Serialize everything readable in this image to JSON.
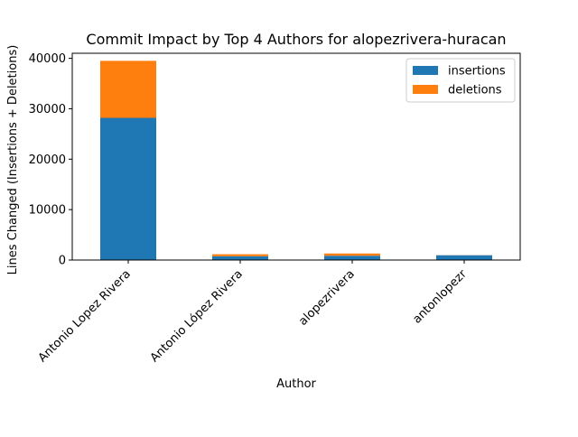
{
  "chart_data": {
    "type": "bar",
    "stacked": true,
    "title": "Commit Impact by Top 4 Authors for alopezrivera-huracan",
    "xlabel": "Author",
    "ylabel": "Lines Changed (Insertions + Deletions)",
    "categories": [
      "Antonio Lopez Rivera",
      "Antonio López Rivera",
      "alopezrivera",
      "antonlopezr"
    ],
    "series": [
      {
        "name": "insertions",
        "color": "#1f77b4",
        "values": [
          28200,
          750,
          850,
          950
        ]
      },
      {
        "name": "deletions",
        "color": "#ff7f0e",
        "values": [
          11300,
          400,
          450,
          20
        ]
      }
    ],
    "ylim": [
      0,
      41000
    ],
    "yticks": [
      0,
      10000,
      20000,
      30000,
      40000
    ],
    "ytick_labels": [
      "0",
      "10000",
      "20000",
      "30000",
      "40000"
    ],
    "legend_position": "top-right",
    "grid": false
  }
}
